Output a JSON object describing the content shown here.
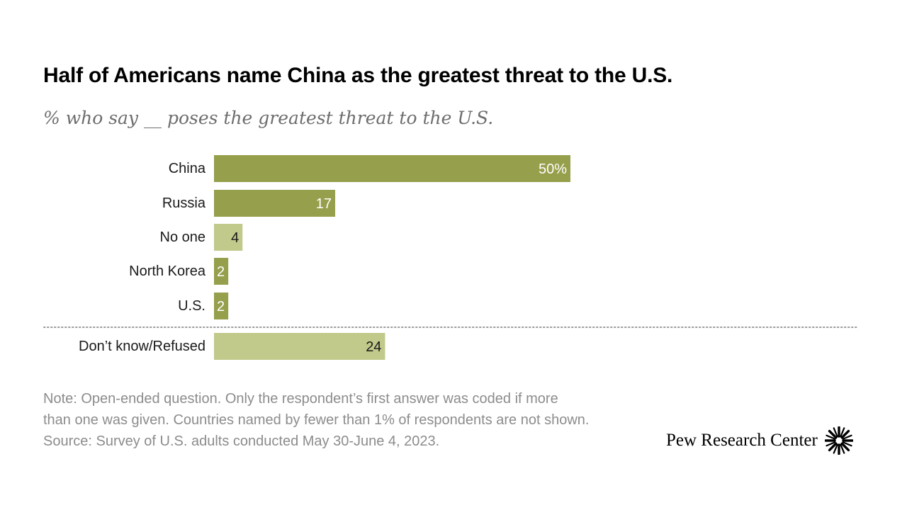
{
  "title": "Half of Americans name China as the greatest threat to the U.S.",
  "subtitle": "% who say __ poses the greatest threat to the U.S.",
  "note": {
    "line1": "Note: Open-ended question. Only the respondent’s first answer was coded if more",
    "line2": "than one was given. Countries named by fewer than 1% of respondents are not shown.",
    "line3": "Source: Survey of U.S. adults conducted May 30-June 4, 2023."
  },
  "logo": {
    "text": "Pew Research Center",
    "icon": "pew-sunburst-logo-icon"
  },
  "colors": {
    "dark_bar": "#969f4b",
    "light_bar": "#c1c98b",
    "divider": "#9a9a9a"
  },
  "chart_data": {
    "type": "bar",
    "orientation": "horizontal",
    "categories": [
      "China",
      "Russia",
      "No one",
      "North Korea",
      "U.S.",
      "Don’t know/Refused"
    ],
    "values": [
      50,
      17,
      4,
      2,
      2,
      24
    ],
    "value_labels": [
      "50%",
      "17",
      "4",
      "2",
      "2",
      "24"
    ],
    "shades": [
      "dark",
      "dark",
      "light",
      "dark",
      "dark",
      "light"
    ],
    "divider_before_index": 5,
    "xlim": [
      0,
      50
    ],
    "grid": false,
    "legend": false
  }
}
